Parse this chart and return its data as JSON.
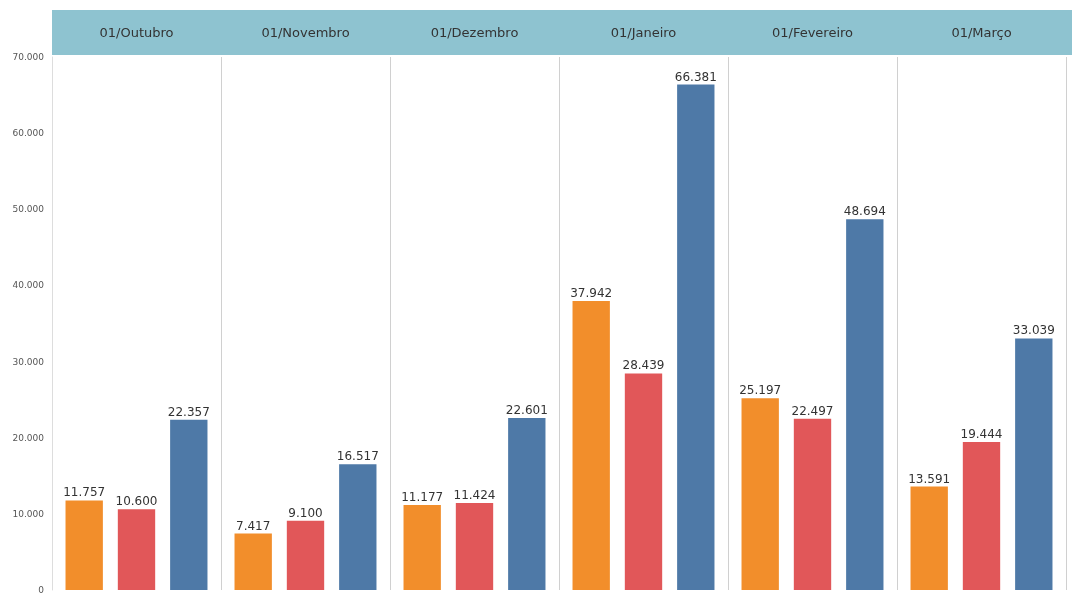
{
  "chart_data": {
    "type": "bar",
    "categories": [
      "01/Outubro",
      "01/Novembro",
      "01/Dezembro",
      "01/Janeiro",
      "01/Fevereiro",
      "01/Março"
    ],
    "series": [
      {
        "color": "#f28e2b",
        "values": [
          11757,
          7417,
          11177,
          37942,
          25197,
          13591
        ],
        "value_labels": [
          "11.757",
          "7.417",
          "11.177",
          "37.942",
          "25.197",
          "13.591"
        ]
      },
      {
        "color": "#e15759",
        "values": [
          10600,
          9100,
          11424,
          28439,
          22497,
          19444
        ],
        "value_labels": [
          "10.600",
          "9.100",
          "11.424",
          "28.439",
          "22.497",
          "19.444"
        ]
      },
      {
        "color": "#4e79a7",
        "values": [
          22357,
          16517,
          22601,
          66381,
          48694,
          33039
        ],
        "value_labels": [
          "22.357",
          "16.517",
          "22.601",
          "66.381",
          "48.694",
          "33.039"
        ]
      }
    ],
    "ylim": [
      0,
      70000
    ],
    "yticks": [
      0,
      {
        "value": 10000,
        "label": "10.000"
      },
      {
        "value": 20000,
        "label": "20.000"
      },
      {
        "value": 30000,
        "label": "30.000"
      },
      {
        "value": 40000,
        "label": "40.000"
      },
      {
        "value": 50000,
        "label": "50.000"
      },
      {
        "value": 60000,
        "label": "60.000"
      },
      {
        "value": 70000,
        "label": "70.000"
      }
    ],
    "grid": "x"
  }
}
